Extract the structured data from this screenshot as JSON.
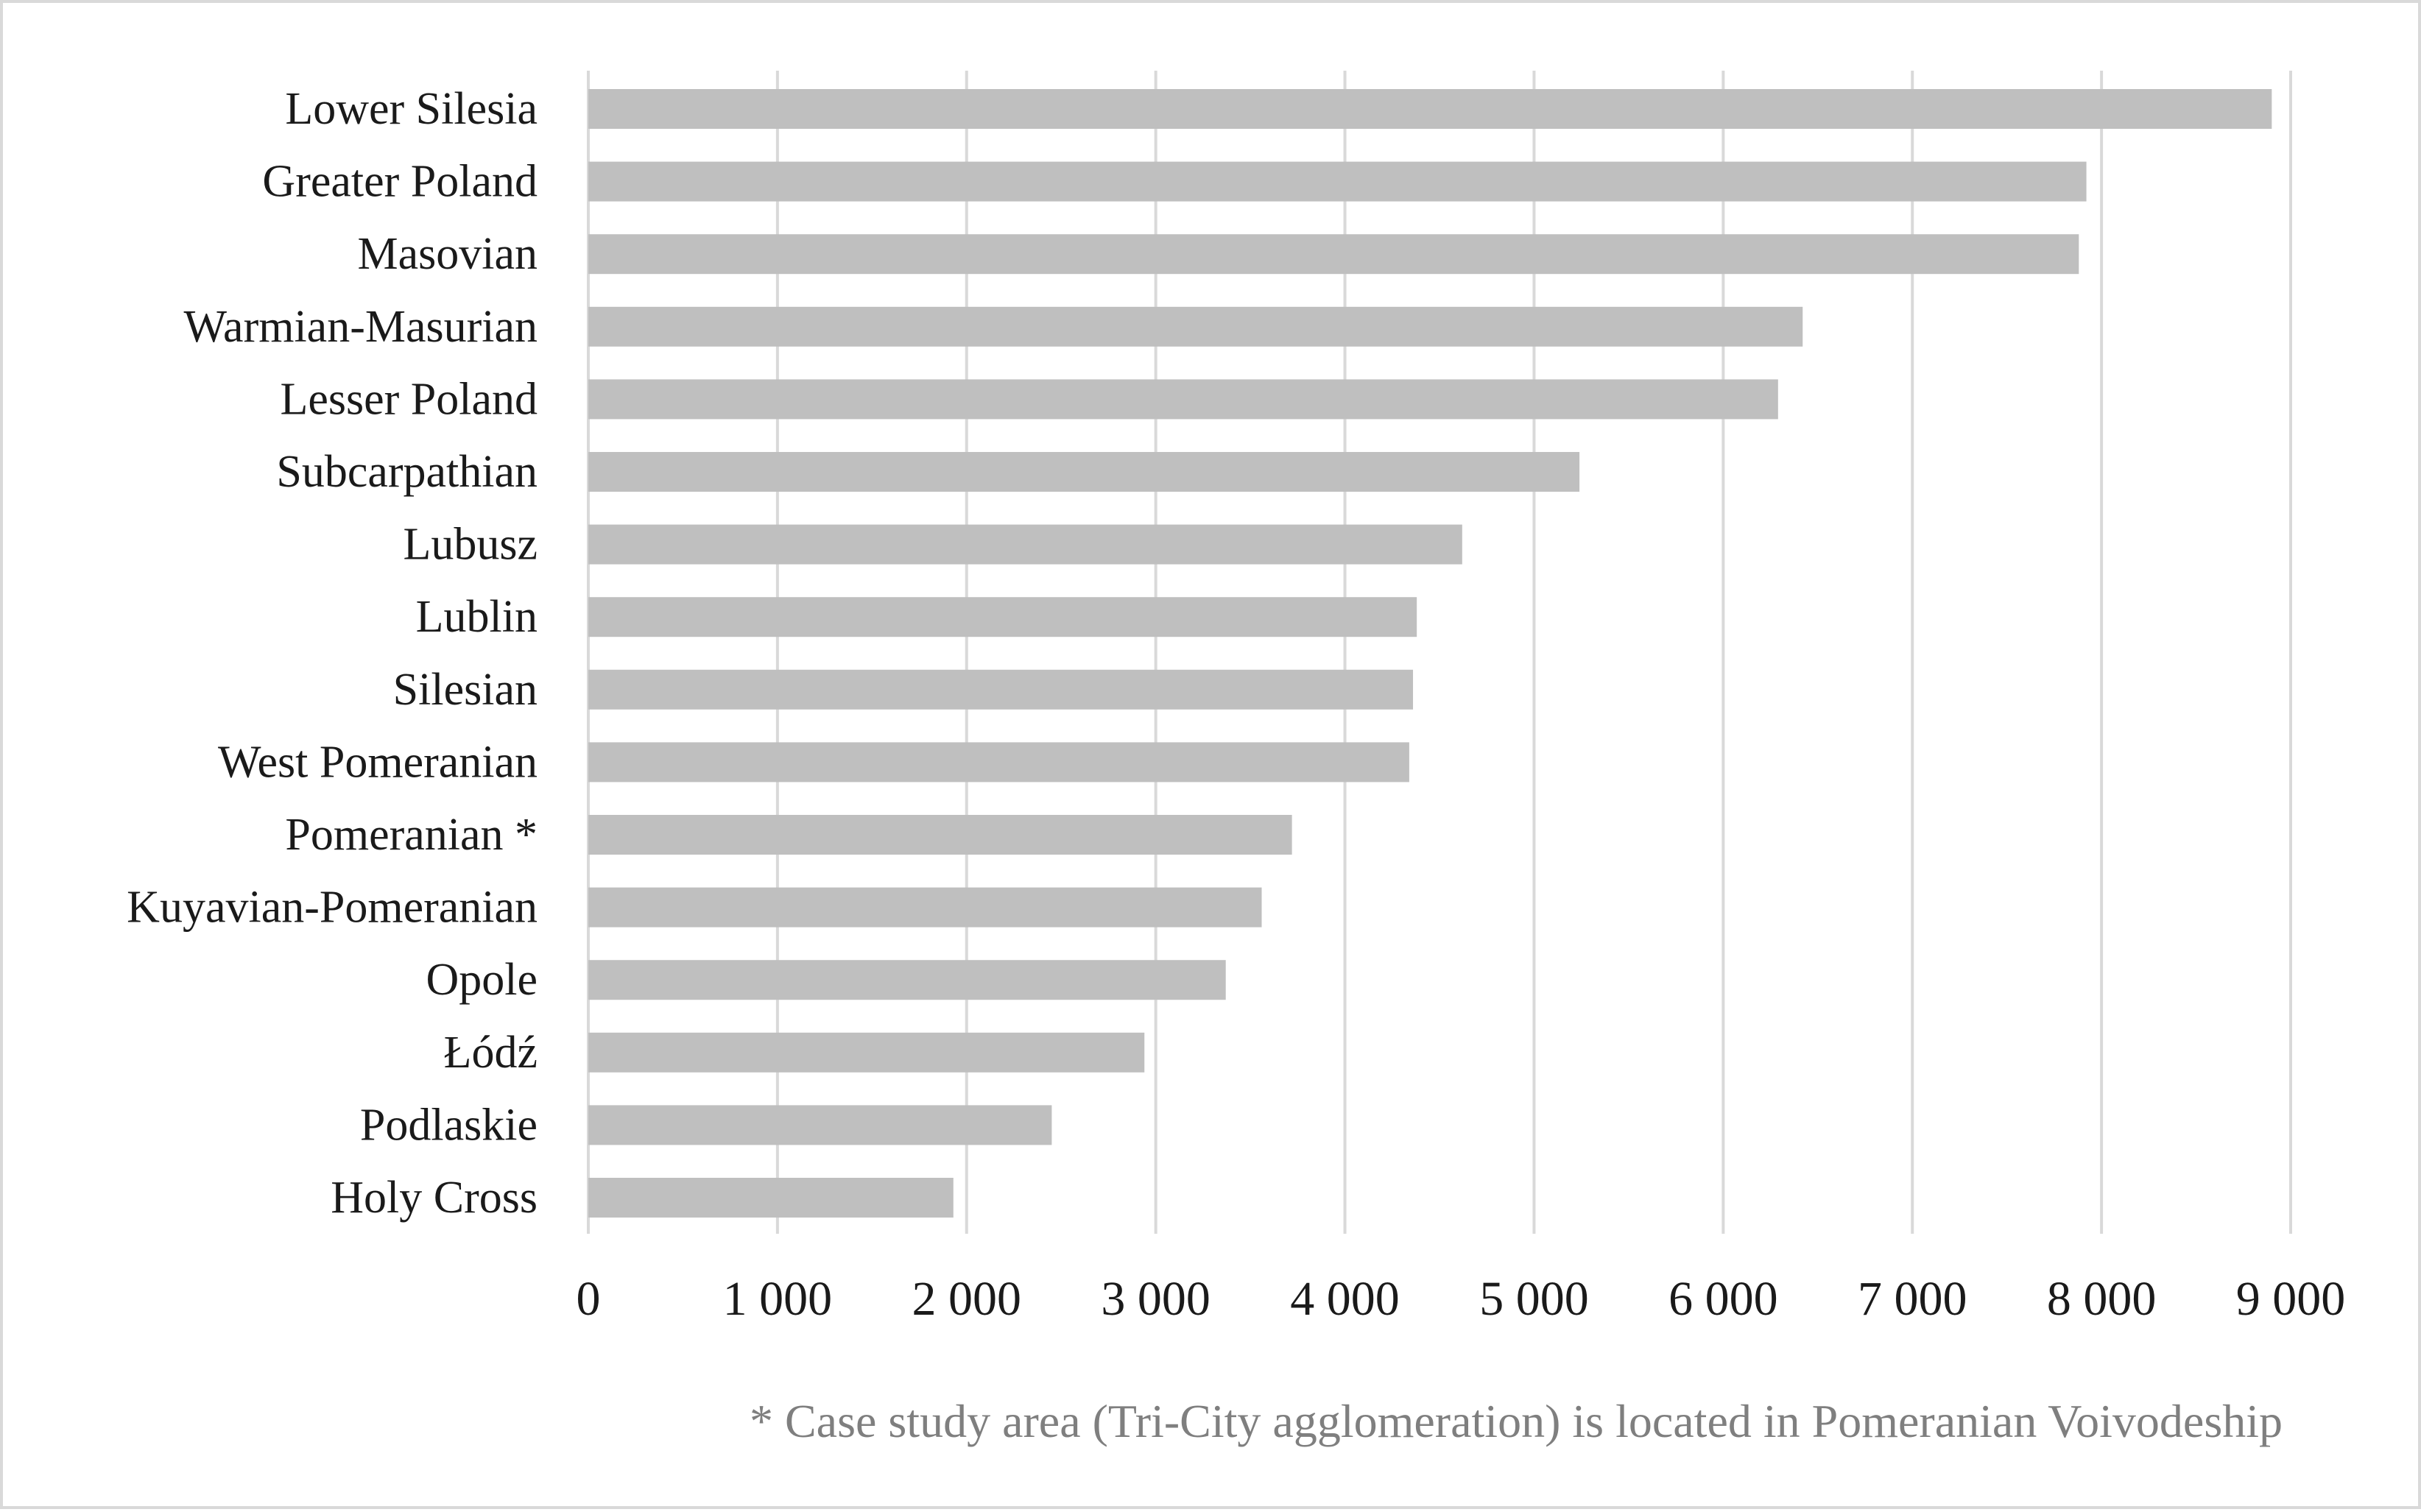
{
  "chart_data": {
    "type": "bar",
    "orientation": "horizontal",
    "categories": [
      "Lower Silesia",
      "Greater Poland",
      "Masovian",
      "Warmian-Masurian",
      "Lesser Poland",
      "Subcarpathian",
      "Lubusz",
      "Lublin",
      "Silesian",
      "West Pomeranian",
      "Pomeranian *",
      "Kuyavian-Pomeranian",
      "Opole",
      "Łódź",
      "Podlaskie",
      "Holy Cross"
    ],
    "values": [
      8900,
      7920,
      7880,
      6420,
      6290,
      5240,
      4620,
      4380,
      4360,
      4340,
      3720,
      3560,
      3370,
      2940,
      2450,
      1930
    ],
    "xlim": [
      0,
      9000
    ],
    "xticks": [
      0,
      1000,
      2000,
      3000,
      4000,
      5000,
      6000,
      7000,
      8000,
      9000
    ],
    "xtick_labels": [
      "0",
      "1 000",
      "2 000",
      "3 000",
      "4 000",
      "5 000",
      "6 000",
      "7 000",
      "8 000",
      "9 000"
    ],
    "title": "",
    "xlabel": "",
    "ylabel": "",
    "grid": "vertical",
    "legend": "none",
    "colors": {
      "bar": "#bfbfbf",
      "grid": "#d9d9d9",
      "text": "#1a1a1a",
      "footnote": "#7f7f7f",
      "border": "#d9d9d9"
    },
    "footnote": "* Case study area (Tri-City agglomeration) is located in Pomeranian Voivodeship"
  }
}
